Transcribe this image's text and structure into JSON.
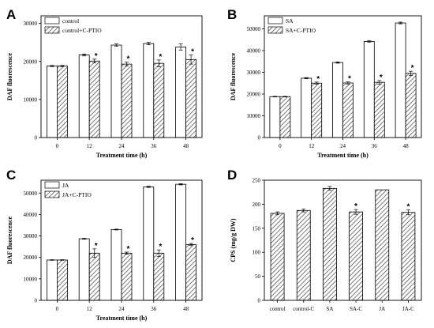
{
  "chart_data": [
    {
      "panel": "A",
      "type": "bar",
      "categories": [
        "0",
        "12",
        "24",
        "36",
        "48"
      ],
      "xlabel": "Treatment time (h)",
      "ylabel": "DAF fluorescence",
      "ylim": [
        0,
        32000
      ],
      "yticks": [
        0,
        10000,
        20000,
        30000
      ],
      "ytick_labels": [
        "0",
        "10000",
        "20000",
        "30000"
      ],
      "legend": "top-left",
      "series": [
        {
          "name": "control",
          "pattern": "white",
          "values": [
            18800,
            21700,
            24300,
            24700,
            23800
          ],
          "errors": [
            150,
            250,
            300,
            300,
            800
          ]
        },
        {
          "name": "control+C-PTIO",
          "pattern": "hatched",
          "values": [
            18800,
            20100,
            19300,
            19500,
            20500
          ],
          "errors": [
            150,
            500,
            500,
            900,
            1200
          ],
          "stars": [
            false,
            true,
            true,
            true,
            true
          ]
        }
      ]
    },
    {
      "panel": "B",
      "type": "bar",
      "categories": [
        "0",
        "12",
        "24",
        "36",
        "48"
      ],
      "xlabel": "Treatment time (h)",
      "ylabel": "DAF fluorescence",
      "ylim": [
        0,
        56000
      ],
      "yticks": [
        0,
        10000,
        20000,
        30000,
        40000,
        50000
      ],
      "ytick_labels": [
        "0",
        "10000",
        "20000",
        "30000",
        "40000",
        "50000"
      ],
      "legend": "top-left",
      "series": [
        {
          "name": "SA",
          "pattern": "white",
          "values": [
            18800,
            27300,
            34500,
            44200,
            52700
          ],
          "errors": [
            150,
            250,
            300,
            300,
            400
          ]
        },
        {
          "name": "SA+C-PTIO",
          "pattern": "hatched",
          "values": [
            18800,
            25000,
            25100,
            25400,
            29500
          ],
          "errors": [
            150,
            500,
            500,
            800,
            1000
          ],
          "stars": [
            false,
            true,
            true,
            true,
            true
          ]
        }
      ]
    },
    {
      "panel": "C",
      "type": "bar",
      "categories": [
        "0",
        "12",
        "24",
        "36",
        "48"
      ],
      "xlabel": "Treatment time (h)",
      "ylabel": "DAF fluorescence",
      "ylim": [
        0,
        56000
      ],
      "yticks": [
        0,
        10000,
        20000,
        30000,
        40000,
        50000
      ],
      "ytick_labels": [
        "0",
        "10000",
        "20000",
        "30000",
        "40000",
        "50000"
      ],
      "legend": "top-left",
      "series": [
        {
          "name": "JA",
          "pattern": "white",
          "values": [
            18800,
            28700,
            33000,
            52900,
            54100
          ],
          "errors": [
            150,
            200,
            200,
            300,
            300
          ]
        },
        {
          "name": "JA+C-PTIO",
          "pattern": "hatched",
          "values": [
            18800,
            22000,
            22000,
            22000,
            26000
          ],
          "errors": [
            150,
            2000,
            500,
            1500,
            500
          ],
          "stars": [
            false,
            true,
            true,
            true,
            true
          ]
        }
      ]
    },
    {
      "panel": "D",
      "type": "bar",
      "categories": [
        "control",
        "control-C",
        "SA",
        "SA-C",
        "JA",
        "JA-C"
      ],
      "xlabel": "",
      "ylabel": "CPS (mg/g DW)",
      "ylim": [
        0,
        250
      ],
      "yticks": [
        0,
        50,
        100,
        150,
        200,
        250
      ],
      "ytick_labels": [
        "0",
        "50",
        "100",
        "150",
        "200",
        "250"
      ],
      "series": [
        {
          "name": "",
          "pattern": "hatched",
          "values": [
            181,
            187,
            233,
            184,
            230,
            183
          ],
          "errors": [
            3,
            3,
            4,
            5,
            0,
            5
          ],
          "stars": [
            false,
            false,
            false,
            true,
            false,
            true
          ]
        }
      ]
    }
  ]
}
